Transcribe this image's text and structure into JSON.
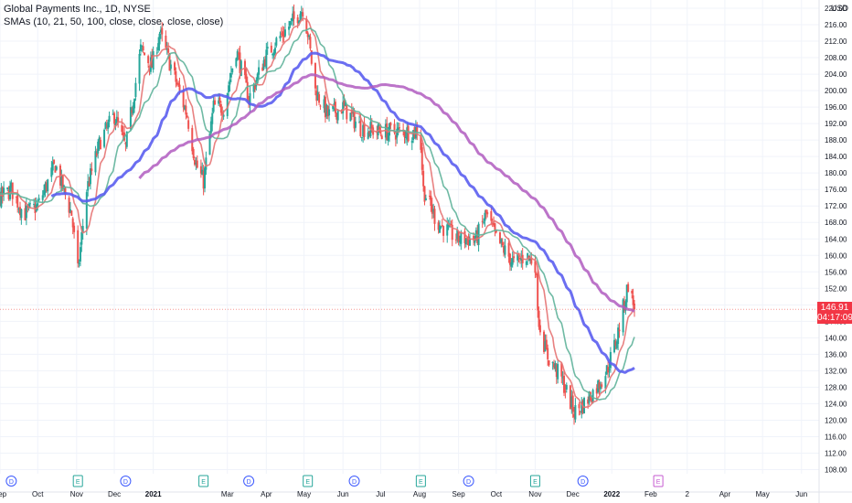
{
  "header": {
    "title": "Global Payments Inc., 1D, NYSE",
    "indicator": "SMAs (10, 21, 50, 100, close, close, close, close)",
    "currency": "USD"
  },
  "last_price": {
    "value": "146.91",
    "countdown": "04:17:09",
    "color": "#f23645"
  },
  "colors": {
    "up": "#26a69a",
    "down": "#ef5350",
    "sma10": "#e57373",
    "sma21": "#5fb39a",
    "sma50": "#5b5ef0",
    "sma100": "#b05cc0",
    "grid": "#f0f3fa",
    "axis_text": "#131722"
  },
  "events": [
    {
      "letter": "D",
      "type": "dividend"
    },
    {
      "letter": "E",
      "type": "earnings"
    },
    {
      "letter": "D",
      "type": "dividend"
    },
    {
      "letter": "E",
      "type": "earnings"
    },
    {
      "letter": "D",
      "type": "dividend"
    },
    {
      "letter": "E",
      "type": "earnings"
    },
    {
      "letter": "D",
      "type": "dividend"
    },
    {
      "letter": "E",
      "type": "earnings"
    },
    {
      "letter": "D",
      "type": "dividend"
    },
    {
      "letter": "E",
      "type": "earnings"
    },
    {
      "letter": "D",
      "type": "dividend"
    },
    {
      "letter": "E",
      "type": "earnings-upcoming"
    }
  ],
  "chart_data": {
    "type": "candlestick",
    "title": "Global Payments Inc., 1D, NYSE",
    "y_ticks": [
      "220.00",
      "216.00",
      "212.00",
      "208.00",
      "204.00",
      "200.00",
      "196.00",
      "192.00",
      "188.00",
      "184.00",
      "180.00",
      "176.00",
      "172.00",
      "168.00",
      "164.00",
      "160.00",
      "156.00",
      "152.00",
      "148.00",
      "144.00",
      "140.00",
      "136.00",
      "132.00",
      "128.00",
      "124.00",
      "120.00",
      "116.00",
      "112.00",
      "108.00"
    ],
    "ylim": [
      107,
      222
    ],
    "x_ticks": [
      "Sep",
      "Oct",
      "Nov",
      "Dec",
      "2021",
      "Mar",
      "Apr",
      "May",
      "Jun",
      "Jul",
      "Aug",
      "Sep",
      "Oct",
      "Nov",
      "Dec",
      "2022",
      "Feb",
      "2",
      "Apr",
      "May",
      "Jun"
    ],
    "x_ticks_bold": [
      "2021",
      "2022"
    ],
    "x_tick_dates": [
      "2020-09-01",
      "2020-10-01",
      "2020-11-01",
      "2020-12-01",
      "2021-01-01",
      "2021-03-01",
      "2021-04-01",
      "2021-05-01",
      "2021-06-01",
      "2021-07-01",
      "2021-08-01",
      "2021-09-01",
      "2021-10-01",
      "2021-11-01",
      "2021-12-01",
      "2022-01-01",
      "2022-02-01",
      "2022-03-02",
      "2022-04-01",
      "2022-05-01",
      "2022-06-01"
    ],
    "x_range": [
      "2020-09-01",
      "2022-06-15"
    ],
    "price_path": [
      [
        "2020-09-01",
        174
      ],
      [
        "2020-09-10",
        176
      ],
      [
        "2020-09-20",
        170
      ],
      [
        "2020-10-01",
        172
      ],
      [
        "2020-10-15",
        182
      ],
      [
        "2020-10-28",
        170
      ],
      [
        "2020-11-02",
        156
      ],
      [
        "2020-11-09",
        176
      ],
      [
        "2020-11-20",
        188
      ],
      [
        "2020-12-01",
        194
      ],
      [
        "2020-12-10",
        186
      ],
      [
        "2020-12-22",
        210
      ],
      [
        "2020-12-31",
        206
      ],
      [
        "2021-01-06",
        214
      ],
      [
        "2021-01-15",
        206
      ],
      [
        "2021-01-28",
        194
      ],
      [
        "2021-02-04",
        182
      ],
      [
        "2021-02-10",
        178
      ],
      [
        "2021-02-18",
        196
      ],
      [
        "2021-02-26",
        196
      ],
      [
        "2021-03-08",
        210
      ],
      [
        "2021-03-18",
        198
      ],
      [
        "2021-03-31",
        208
      ],
      [
        "2021-04-09",
        212
      ],
      [
        "2021-04-20",
        216
      ],
      [
        "2021-04-30",
        220
      ],
      [
        "2021-05-04",
        214
      ],
      [
        "2021-05-10",
        200
      ],
      [
        "2021-05-20",
        194
      ],
      [
        "2021-06-01",
        196
      ],
      [
        "2021-06-15",
        191
      ],
      [
        "2021-07-01",
        190
      ],
      [
        "2021-07-15",
        190
      ],
      [
        "2021-07-28",
        190
      ],
      [
        "2021-08-01",
        192
      ],
      [
        "2021-08-04",
        176
      ],
      [
        "2021-08-15",
        168
      ],
      [
        "2021-08-31",
        164
      ],
      [
        "2021-09-15",
        164
      ],
      [
        "2021-09-23",
        170
      ],
      [
        "2021-10-01",
        164
      ],
      [
        "2021-10-15",
        158
      ],
      [
        "2021-10-25",
        160
      ],
      [
        "2021-11-01",
        158
      ],
      [
        "2021-11-04",
        144
      ],
      [
        "2021-11-10",
        136
      ],
      [
        "2021-11-22",
        130
      ],
      [
        "2021-12-02",
        122
      ],
      [
        "2021-12-10",
        124
      ],
      [
        "2021-12-20",
        128
      ],
      [
        "2021-12-28",
        132
      ],
      [
        "2022-01-05",
        140
      ],
      [
        "2022-01-12",
        150
      ],
      [
        "2022-01-14",
        153
      ],
      [
        "2022-01-19",
        147
      ]
    ],
    "series": [
      {
        "name": "SMA 10",
        "color": "#e57373",
        "lag_days": 6
      },
      {
        "name": "SMA 21",
        "color": "#5fb39a",
        "lag_days": 13
      },
      {
        "name": "SMA 50",
        "color": "#5b5ef0",
        "lag_days": 30
      },
      {
        "name": "SMA 100",
        "color": "#b05cc0",
        "lag_days": 60
      }
    ],
    "last_close": 146.91,
    "grid": true,
    "legend": "top-left"
  }
}
